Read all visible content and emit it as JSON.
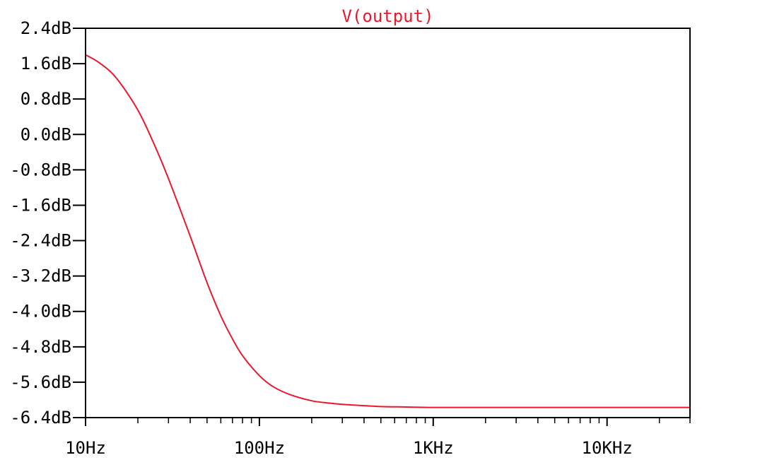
{
  "chart_data": {
    "type": "line",
    "title": "V(output)",
    "x_scale": "log",
    "xlim": [
      10,
      30000
    ],
    "ylim": [
      -6.4,
      2.4
    ],
    "grid": false,
    "x_ticks": [
      {
        "value": 10,
        "label": "10Hz"
      },
      {
        "value": 100,
        "label": "100Hz"
      },
      {
        "value": 1000,
        "label": "1KHz"
      },
      {
        "value": 10000,
        "label": "10KHz"
      }
    ],
    "y_ticks": [
      {
        "value": 2.4,
        "label": "2.4dB"
      },
      {
        "value": 1.6,
        "label": "1.6dB"
      },
      {
        "value": 0.8,
        "label": "0.8dB"
      },
      {
        "value": 0.0,
        "label": "0.0dB"
      },
      {
        "value": -0.8,
        "label": "-0.8dB"
      },
      {
        "value": -1.6,
        "label": "-1.6dB"
      },
      {
        "value": -2.4,
        "label": "-2.4dB"
      },
      {
        "value": -3.2,
        "label": "-3.2dB"
      },
      {
        "value": -4.0,
        "label": "-4.0dB"
      },
      {
        "value": -4.8,
        "label": "-4.8dB"
      },
      {
        "value": -5.6,
        "label": "-5.6dB"
      },
      {
        "value": -6.4,
        "label": "-6.4dB"
      }
    ],
    "series": [
      {
        "name": "V(output)",
        "color": "#e8192c",
        "x": [
          10,
          12,
          15,
          20,
          25,
          30,
          40,
          50,
          60,
          70,
          80,
          100,
          120,
          150,
          200,
          250,
          300,
          400,
          500,
          700,
          1000,
          2000,
          5000,
          10000,
          30000
        ],
        "y": [
          1.8,
          1.62,
          1.28,
          0.55,
          -0.25,
          -1.0,
          -2.3,
          -3.35,
          -4.1,
          -4.62,
          -5.0,
          -5.45,
          -5.7,
          -5.88,
          -6.02,
          -6.07,
          -6.1,
          -6.13,
          -6.15,
          -6.16,
          -6.17,
          -6.17,
          -6.17,
          -6.17,
          -6.17
        ]
      }
    ]
  }
}
